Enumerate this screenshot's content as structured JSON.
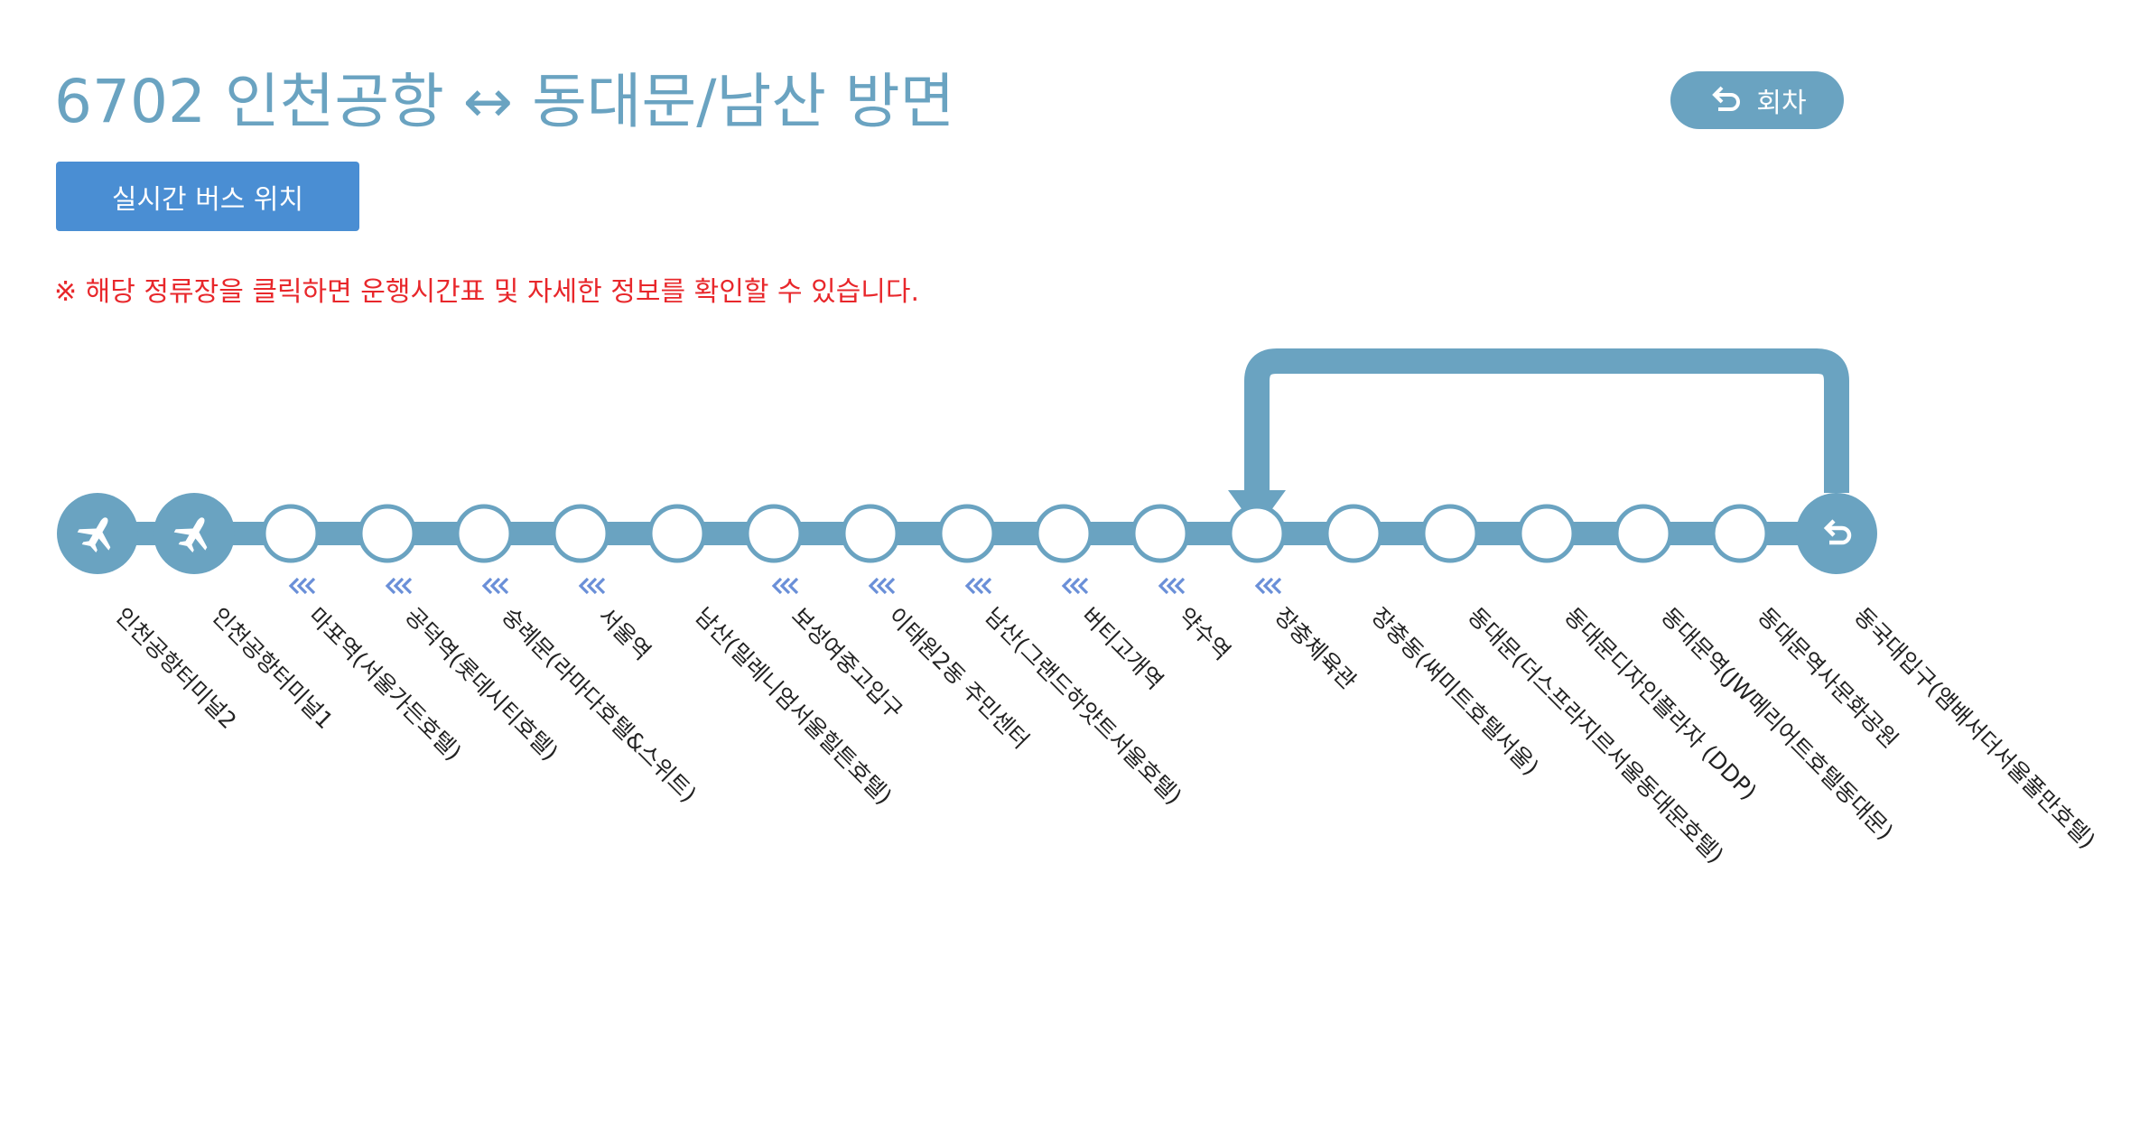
{
  "header": {
    "title": "6702 인천공항 ↔ 동대문/남산 방면",
    "turn_button_label": "회차"
  },
  "toolbar": {
    "realtime_label": "실시간 버스 위치"
  },
  "notice": "※ 해당 정류장을 클릭하면 운행시간표 및 자세한 정보를 확인할 수 있습니다.",
  "colors": {
    "route": "#6aa3c1",
    "realtime_button": "#4a8ed3",
    "notice": "#e8272b",
    "direction_arrow": "#6a8fd8"
  },
  "stops": [
    {
      "name": "인천공항터미널2",
      "icon": "airplane-icon",
      "direction_mark": false
    },
    {
      "name": "인천공항터미널1",
      "icon": "airplane-icon",
      "direction_mark": false
    },
    {
      "name": "마포역(서울가든호텔)",
      "icon": "stop-circle",
      "direction_mark": true
    },
    {
      "name": "공덕역(롯데시티호텔)",
      "icon": "stop-circle",
      "direction_mark": true
    },
    {
      "name": "숭례문(라마다호텔&스위트)",
      "icon": "stop-circle",
      "direction_mark": true
    },
    {
      "name": "서울역",
      "icon": "stop-circle",
      "direction_mark": true
    },
    {
      "name": "남산(밀레니엄서울힐튼호텔)",
      "icon": "stop-circle",
      "direction_mark": false
    },
    {
      "name": "보성여중고입구",
      "icon": "stop-circle",
      "direction_mark": true
    },
    {
      "name": "이태원2동 주민센터",
      "icon": "stop-circle",
      "direction_mark": true
    },
    {
      "name": "남산(그랜드하얏트서울호텔)",
      "icon": "stop-circle",
      "direction_mark": true
    },
    {
      "name": "버티고개역",
      "icon": "stop-circle",
      "direction_mark": true
    },
    {
      "name": "약수역",
      "icon": "stop-circle",
      "direction_mark": true
    },
    {
      "name": "장충체육관",
      "icon": "stop-circle",
      "direction_mark": true
    },
    {
      "name": "장충동(써미트호텔서울)",
      "icon": "stop-circle",
      "direction_mark": false
    },
    {
      "name": "동대문(더스프라지르서울동대문호텔)",
      "icon": "stop-circle",
      "direction_mark": false
    },
    {
      "name": "동대문디자인플라자 (DDP)",
      "icon": "stop-circle",
      "direction_mark": false
    },
    {
      "name": "동대문역(JW메리어트호텔동대문)",
      "icon": "stop-circle",
      "direction_mark": false
    },
    {
      "name": "동대문역사문화공원",
      "icon": "stop-circle",
      "direction_mark": false
    },
    {
      "name": "동국대입구(앰배서더서울풀만호텔)",
      "icon": "u-turn-icon",
      "direction_mark": false
    }
  ]
}
